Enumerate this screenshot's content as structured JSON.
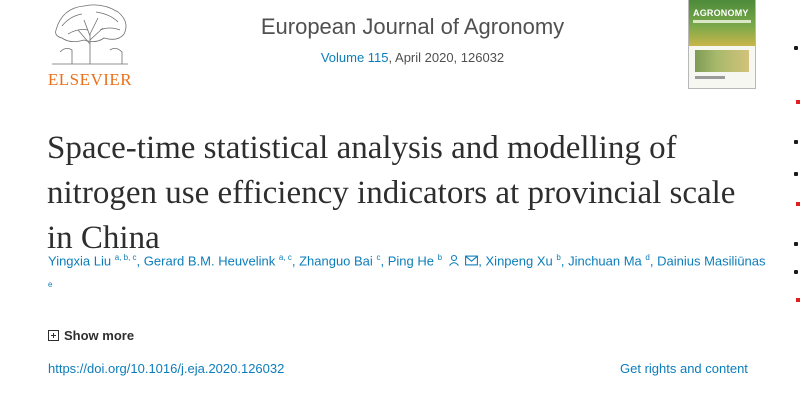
{
  "header": {
    "publisher": "ELSEVIER",
    "journal_title": "European Journal of Agronomy",
    "volume_link": "Volume 115",
    "issue_info": ", April 2020, 126032",
    "cover_journal": "AGRONOMY"
  },
  "article": {
    "title": "Space-time statistical analysis and modelling of nitrogen use efficiency indicators at provincial scale in China",
    "authors": [
      {
        "name": "Yingxia Liu",
        "affil": "a, b, c"
      },
      {
        "name": "Gerard B.M. Heuvelink",
        "affil": "a, c"
      },
      {
        "name": "Zhanguo Bai",
        "affil": "c"
      },
      {
        "name": "Ping He",
        "affil": "b"
      },
      {
        "name": "Xinpeng Xu",
        "affil": "b"
      },
      {
        "name": "Jinchuan Ma",
        "affil": "d"
      },
      {
        "name": "Dainius Masiliūnas",
        "affil": "e"
      }
    ],
    "show_more": "Show more",
    "doi": "https://doi.org/10.1016/j.eja.2020.126032",
    "rights": "Get rights and content"
  },
  "colors": {
    "link": "#0c7dbb",
    "publisher": "#e9711c",
    "text": "#2e2e2e"
  }
}
